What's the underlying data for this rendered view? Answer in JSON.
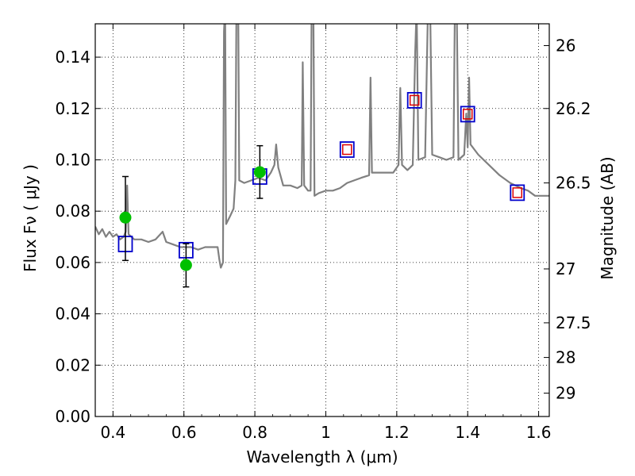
{
  "chart_data": {
    "type": "scatter",
    "xlabel": "Wavelength  λ (μm)",
    "ylabel": "Flux  Fν  ( μJy )",
    "y2label": "Magnitude (AB)",
    "xlim": [
      0.35,
      1.63
    ],
    "ylim": [
      0.0,
      0.153
    ],
    "grid": true,
    "x_ticks": [
      {
        "value": 0.4,
        "label": "0.4"
      },
      {
        "value": 0.6,
        "label": "0.6"
      },
      {
        "value": 0.8,
        "label": "0.8"
      },
      {
        "value": 1.0,
        "label": "1"
      },
      {
        "value": 1.2,
        "label": "1.2"
      },
      {
        "value": 1.4,
        "label": "1.4"
      },
      {
        "value": 1.6,
        "label": "1.6"
      }
    ],
    "y_ticks": [
      {
        "value": 0.0,
        "label": "0.00"
      },
      {
        "value": 0.02,
        "label": "0.02"
      },
      {
        "value": 0.04,
        "label": "0.04"
      },
      {
        "value": 0.06,
        "label": "0.06"
      },
      {
        "value": 0.08,
        "label": "0.08"
      },
      {
        "value": 0.1,
        "label": "0.10"
      },
      {
        "value": 0.12,
        "label": "0.12"
      },
      {
        "value": 0.14,
        "label": "0.14"
      }
    ],
    "y2_ticks": [
      {
        "flux": 0.1445,
        "label": "26"
      },
      {
        "flux": 0.12,
        "label": "26.2"
      },
      {
        "flux": 0.091,
        "label": "26.5"
      },
      {
        "flux": 0.0575,
        "label": "27"
      },
      {
        "flux": 0.0365,
        "label": "27.5"
      },
      {
        "flux": 0.023,
        "label": "28"
      },
      {
        "flux": 0.0091,
        "label": "29"
      }
    ],
    "colors": {
      "model": "#808080",
      "observed": "#00c000",
      "model_box": "#0000cc",
      "model_box_inner": "#dd0000",
      "error": "#000000"
    },
    "model_spectrum": [
      [
        0.35,
        0.074
      ],
      [
        0.36,
        0.071
      ],
      [
        0.37,
        0.073
      ],
      [
        0.38,
        0.07
      ],
      [
        0.39,
        0.072
      ],
      [
        0.4,
        0.07
      ],
      [
        0.41,
        0.071
      ],
      [
        0.42,
        0.069
      ],
      [
        0.43,
        0.07
      ],
      [
        0.436,
        0.072
      ],
      [
        0.44,
        0.09
      ],
      [
        0.444,
        0.071
      ],
      [
        0.46,
        0.069
      ],
      [
        0.48,
        0.069
      ],
      [
        0.5,
        0.068
      ],
      [
        0.52,
        0.069
      ],
      [
        0.54,
        0.072
      ],
      [
        0.55,
        0.068
      ],
      [
        0.57,
        0.067
      ],
      [
        0.59,
        0.066
      ],
      [
        0.62,
        0.066
      ],
      [
        0.64,
        0.065
      ],
      [
        0.66,
        0.066
      ],
      [
        0.68,
        0.066
      ],
      [
        0.695,
        0.066
      ],
      [
        0.7,
        0.061
      ],
      [
        0.704,
        0.058
      ],
      [
        0.71,
        0.06
      ],
      [
        0.713,
        0.15
      ],
      [
        0.716,
        0.16
      ],
      [
        0.719,
        0.075
      ],
      [
        0.73,
        0.078
      ],
      [
        0.74,
        0.081
      ],
      [
        0.745,
        0.092
      ],
      [
        0.748,
        0.16
      ],
      [
        0.753,
        0.16
      ],
      [
        0.756,
        0.092
      ],
      [
        0.77,
        0.091
      ],
      [
        0.79,
        0.092
      ],
      [
        0.81,
        0.093
      ],
      [
        0.83,
        0.092
      ],
      [
        0.845,
        0.095
      ],
      [
        0.855,
        0.098
      ],
      [
        0.86,
        0.106
      ],
      [
        0.866,
        0.097
      ],
      [
        0.88,
        0.09
      ],
      [
        0.9,
        0.09
      ],
      [
        0.92,
        0.089
      ],
      [
        0.932,
        0.09
      ],
      [
        0.935,
        0.138
      ],
      [
        0.939,
        0.09
      ],
      [
        0.95,
        0.088
      ],
      [
        0.957,
        0.088
      ],
      [
        0.96,
        0.16
      ],
      [
        0.965,
        0.16
      ],
      [
        0.968,
        0.086
      ],
      [
        0.98,
        0.087
      ],
      [
        1.0,
        0.088
      ],
      [
        1.02,
        0.088
      ],
      [
        1.04,
        0.089
      ],
      [
        1.06,
        0.091
      ],
      [
        1.08,
        0.092
      ],
      [
        1.1,
        0.093
      ],
      [
        1.122,
        0.094
      ],
      [
        1.126,
        0.132
      ],
      [
        1.13,
        0.095
      ],
      [
        1.16,
        0.095
      ],
      [
        1.19,
        0.095
      ],
      [
        1.205,
        0.098
      ],
      [
        1.21,
        0.128
      ],
      [
        1.215,
        0.098
      ],
      [
        1.23,
        0.096
      ],
      [
        1.245,
        0.098
      ],
      [
        1.252,
        0.142
      ],
      [
        1.256,
        0.16
      ],
      [
        1.261,
        0.1
      ],
      [
        1.28,
        0.101
      ],
      [
        1.288,
        0.16
      ],
      [
        1.294,
        0.16
      ],
      [
        1.3,
        0.102
      ],
      [
        1.32,
        0.101
      ],
      [
        1.34,
        0.1
      ],
      [
        1.36,
        0.101
      ],
      [
        1.364,
        0.16
      ],
      [
        1.369,
        0.16
      ],
      [
        1.374,
        0.1
      ],
      [
        1.39,
        0.102
      ],
      [
        1.396,
        0.118
      ],
      [
        1.4,
        0.105
      ],
      [
        1.404,
        0.132
      ],
      [
        1.408,
        0.106
      ],
      [
        1.43,
        0.102
      ],
      [
        1.46,
        0.098
      ],
      [
        1.49,
        0.094
      ],
      [
        1.52,
        0.091
      ],
      [
        1.55,
        0.089
      ],
      [
        1.57,
        0.088
      ],
      [
        1.59,
        0.086
      ],
      [
        1.61,
        0.086
      ],
      [
        1.63,
        0.086
      ]
    ],
    "observed_points": [
      {
        "x": 0.435,
        "y": 0.0775,
        "yerr_low": 0.0608,
        "yerr_high": 0.0935
      },
      {
        "x": 0.606,
        "y": 0.059,
        "yerr_low": 0.0505,
        "yerr_high": 0.0673
      },
      {
        "x": 0.814,
        "y": 0.0952,
        "yerr_low": 0.085,
        "yerr_high": 0.1055
      }
    ],
    "model_photometry": [
      {
        "x": 0.435,
        "y": 0.0672,
        "inner": false
      },
      {
        "x": 0.606,
        "y": 0.0648,
        "inner": false
      },
      {
        "x": 0.814,
        "y": 0.0935,
        "inner": false
      },
      {
        "x": 1.06,
        "y": 0.104,
        "inner": true
      },
      {
        "x": 1.25,
        "y": 0.1232,
        "inner": true
      },
      {
        "x": 1.4,
        "y": 0.1178,
        "inner": true
      },
      {
        "x": 1.54,
        "y": 0.0872,
        "inner": true
      }
    ]
  }
}
